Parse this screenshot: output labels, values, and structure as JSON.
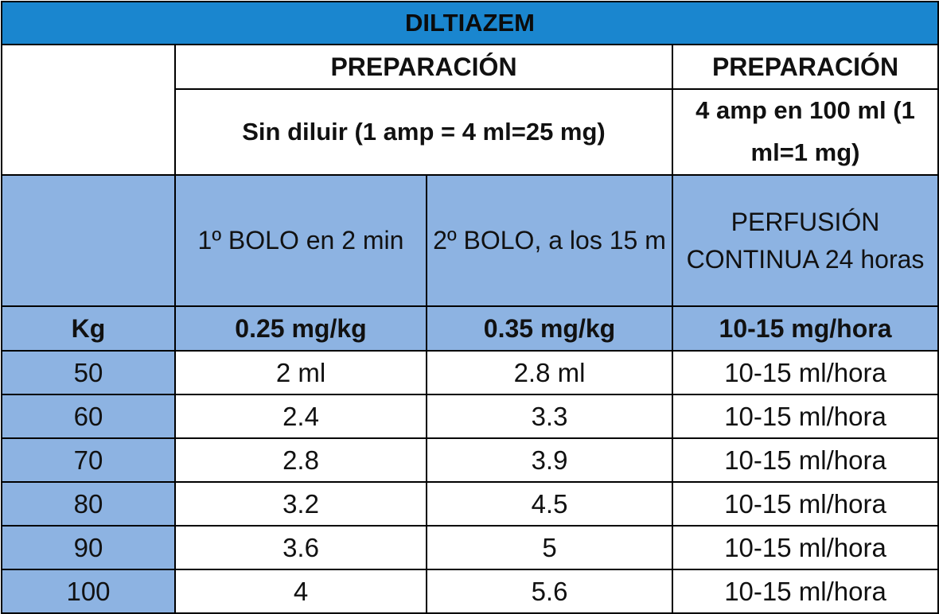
{
  "title": "DILTIAZEM",
  "header": {
    "prep_left": "PREPARACIÓN",
    "prep_right": "PREPARACIÓN",
    "prep_left_detail": "Sin diluir (1 amp = 4 ml=25 mg)",
    "prep_right_detail": "4 amp en 100 ml (1 ml=1 mg)"
  },
  "columns": {
    "kg_label": "Kg",
    "bolo1_label": "1º BOLO en 2 min",
    "bolo2_label": "2º BOLO, a los 15 m",
    "perfusion_label": "PERFUSIÓN CONTINUA 24 horas",
    "bolo1_dose": "0.25 mg/kg",
    "bolo2_dose": "0.35 mg/kg",
    "perfusion_dose": "10-15 mg/hora"
  },
  "rows": [
    {
      "kg": "50",
      "bolo1": "2 ml",
      "bolo2": "2.8 ml",
      "perfusion": "10-15 ml/hora"
    },
    {
      "kg": "60",
      "bolo1": "2.4",
      "bolo2": "3.3",
      "perfusion": "10-15 ml/hora"
    },
    {
      "kg": "70",
      "bolo1": "2.8",
      "bolo2": "3.9",
      "perfusion": "10-15 ml/hora"
    },
    {
      "kg": "80",
      "bolo1": "3.2",
      "bolo2": "4.5",
      "perfusion": "10-15 ml/hora"
    },
    {
      "kg": "90",
      "bolo1": "3.6",
      "bolo2": "5",
      "perfusion": "10-15 ml/hora"
    },
    {
      "kg": "100",
      "bolo1": "4",
      "bolo2": "5.6",
      "perfusion": "10-15 ml/hora"
    }
  ],
  "colors": {
    "title_bg": "#1a86cf",
    "header_blue": "#8db3e2",
    "border": "#000000"
  }
}
